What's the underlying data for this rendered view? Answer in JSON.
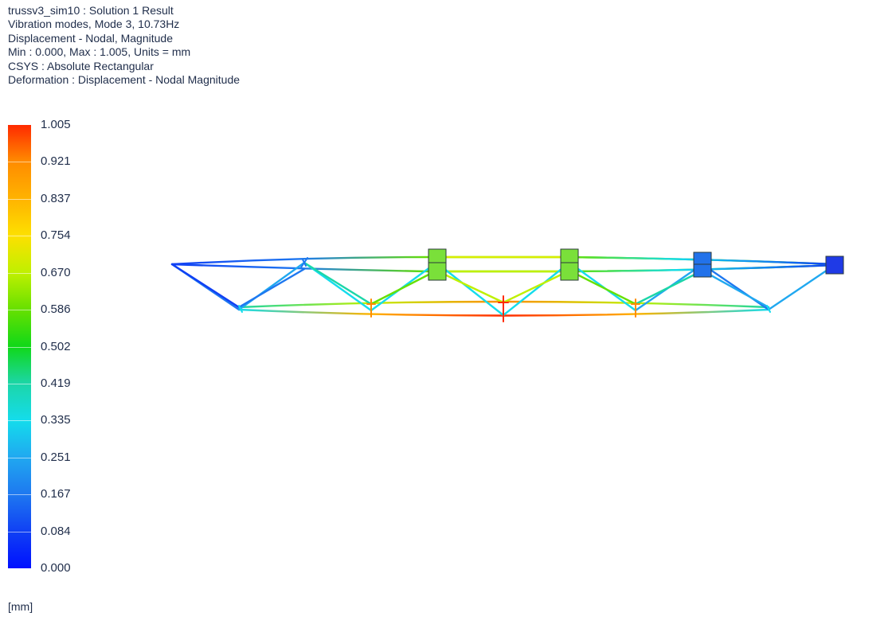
{
  "header": {
    "line1": "trussv3_sim10 : Solution 1 Result",
    "line2": "Vibration modes, Mode 3, 10.73Hz",
    "line3": "Displacement - Nodal, Magnitude",
    "line4": "Min : 0.000, Max : 1.005, Units = mm",
    "line5": "CSYS : Absolute Rectangular",
    "line6": "Deformation : Displacement - Nodal Magnitude"
  },
  "legend": {
    "labels": [
      "1.005",
      "0.921",
      "0.837",
      "0.754",
      "0.670",
      "0.586",
      "0.502",
      "0.419",
      "0.335",
      "0.251",
      "0.167",
      "0.084",
      "0.000"
    ],
    "colors": [
      "#ff2a00",
      "#ff8c00",
      "#ffb300",
      "#fde000",
      "#bff000",
      "#66e000",
      "#10d818",
      "#1cd6a8",
      "#14dcec",
      "#20a8f0",
      "#1e78f0",
      "#1040f4",
      "#0010ff"
    ],
    "units": "[mm]"
  },
  "model": {
    "description_icon": "truss-deformed-shape"
  }
}
